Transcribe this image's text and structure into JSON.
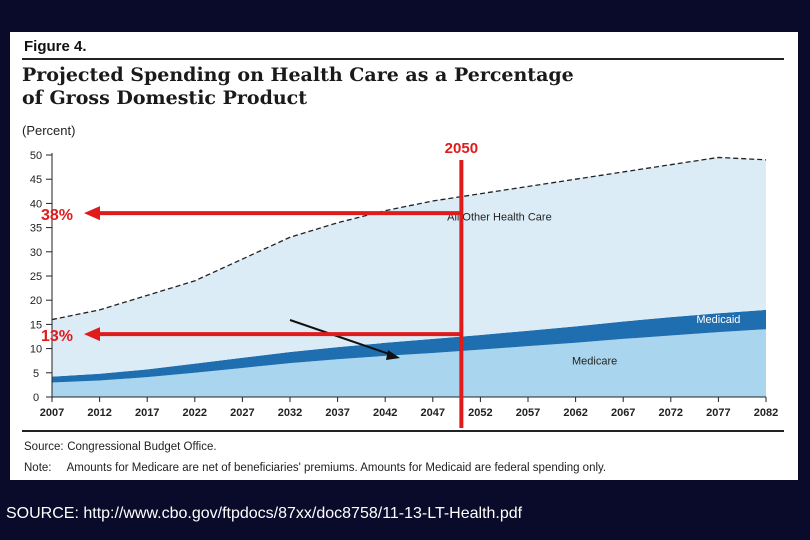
{
  "figure_label": "Figure 4.",
  "title": "Projected Spending on Health Care as a Percentage of Gross Domestic Product",
  "unit_label": "(Percent)",
  "source_label": "Source:",
  "source_text": "Congressional Budget Office.",
  "note_label": "Note:",
  "note_text": "Amounts for Medicare are net of beneficiaries' premiums. Amounts for Medicaid are federal spending only.",
  "footer": "SOURCE: http://www.cbo.gov/ftpdocs/87xx/doc8758/11-13-LT-Health.pdf",
  "colors": {
    "medicare": "#a9d6ee",
    "medicaid": "#1f6fb0",
    "all_other": "#dcecf7",
    "annotation": "#e01b1b"
  },
  "chart_data": {
    "type": "area",
    "stacked": true,
    "x": [
      2007,
      2012,
      2017,
      2022,
      2027,
      2032,
      2037,
      2042,
      2047,
      2052,
      2057,
      2062,
      2067,
      2072,
      2077,
      2082
    ],
    "x_ticks": [
      "2007",
      "2012",
      "2017",
      "2022",
      "2027",
      "2032",
      "2037",
      "2042",
      "2047",
      "2052",
      "2057",
      "2062",
      "2067",
      "2072",
      "2077",
      "2082"
    ],
    "y_ticks": [
      "0",
      "5",
      "10",
      "15",
      "20",
      "25",
      "30",
      "35",
      "40",
      "45",
      "50"
    ],
    "ylim": [
      0,
      50
    ],
    "series": [
      {
        "name": "Medicare",
        "values": [
          3.0,
          3.4,
          4.1,
          5.0,
          6.0,
          7.0,
          7.8,
          8.5,
          9.1,
          9.8,
          10.5,
          11.2,
          12.0,
          12.7,
          13.4,
          14.0
        ]
      },
      {
        "name": "Medicaid",
        "values": [
          1.2,
          1.4,
          1.6,
          1.9,
          2.1,
          2.3,
          2.5,
          2.7,
          2.9,
          3.0,
          3.2,
          3.4,
          3.6,
          3.8,
          3.9,
          4.0
        ]
      },
      {
        "name": "All Other Health Care",
        "values": [
          11.8,
          13.2,
          15.3,
          17.1,
          20.4,
          23.7,
          25.7,
          27.3,
          28.5,
          29.2,
          29.8,
          30.4,
          30.9,
          31.5,
          32.2,
          31.0
        ]
      }
    ],
    "annotations": {
      "year_marker": {
        "label": "2050",
        "x": 2050
      },
      "level_markers": [
        {
          "label": "38%",
          "y": 38
        },
        {
          "label": "13%",
          "y": 13
        }
      ]
    }
  }
}
